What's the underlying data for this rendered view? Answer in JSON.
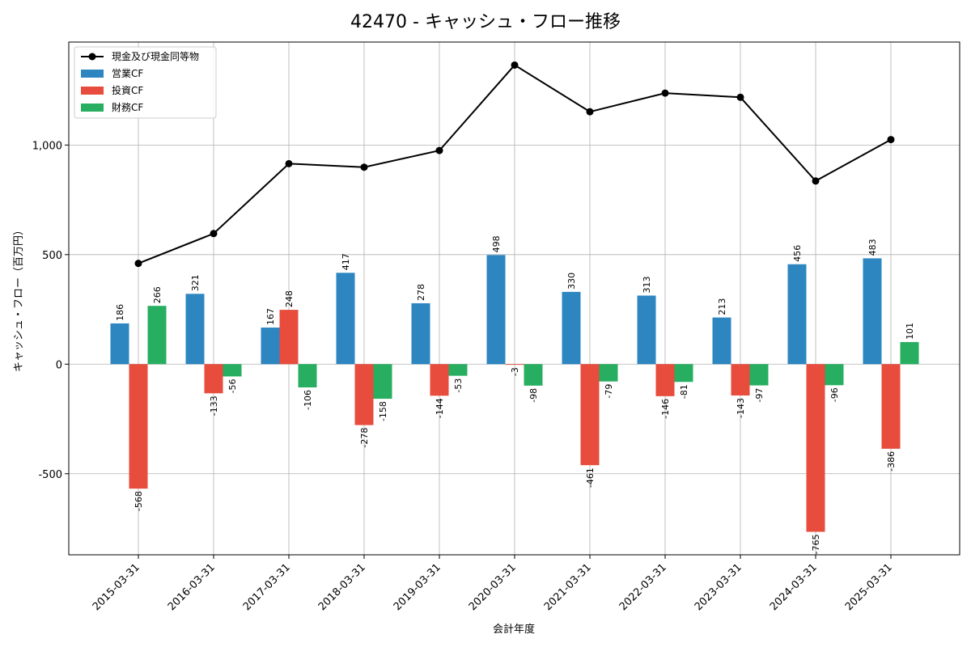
{
  "chart_data": {
    "type": "bar",
    "title": "42470 - キャッシュ・フロー推移",
    "xlabel": "会計年度",
    "ylabel": "キャッシュ・フロー（百万円）",
    "categories": [
      "2015-03-31",
      "2016-03-31",
      "2017-03-31",
      "2018-03-31",
      "2019-03-31",
      "2020-03-31",
      "2021-03-31",
      "2022-03-31",
      "2023-03-31",
      "2024-03-31",
      "2025-03-31"
    ],
    "ylim": [
      -870,
      1470
    ],
    "yticks": [
      -500,
      0,
      500,
      1000
    ],
    "ytick_labels": [
      "-500",
      "0",
      "500",
      "1,000"
    ],
    "grid": true,
    "legend_position": "top-left",
    "series": [
      {
        "name": "営業CF",
        "kind": "bar",
        "color": "#2e86c1",
        "values": [
          186,
          321,
          167,
          417,
          278,
          498,
          330,
          313,
          213,
          456,
          483
        ]
      },
      {
        "name": "投資CF",
        "kind": "bar",
        "color": "#e74c3c",
        "values": [
          -568,
          -133,
          248,
          -278,
          -144,
          -3,
          -461,
          -146,
          -143,
          -765,
          -386
        ]
      },
      {
        "name": "財務CF",
        "kind": "bar",
        "color": "#27ae60",
        "values": [
          266,
          -56,
          -106,
          -158,
          -53,
          -98,
          -79,
          -81,
          -97,
          -96,
          101
        ]
      },
      {
        "name": "現金及び現金同等物",
        "kind": "line",
        "color": "#000000",
        "values": [
          460,
          596,
          915,
          899,
          975,
          1365,
          1152,
          1237,
          1218,
          836,
          1025
        ]
      }
    ]
  }
}
